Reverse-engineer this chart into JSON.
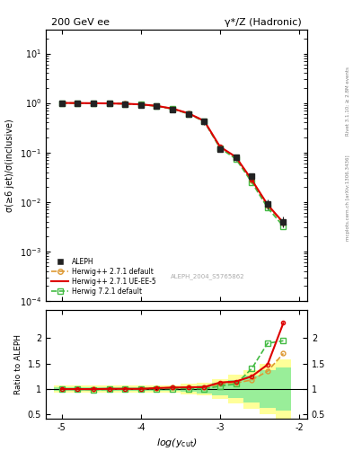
{
  "title_left": "200 GeV ee",
  "title_right": "γ*/Z (Hadronic)",
  "ylabel_main": "σ(≥6 jet)/σ(inclusive)",
  "ylabel_ratio": "Ratio to ALEPH",
  "xlabel": "log(y_cut)",
  "right_label_top": "Rivet 3.1.10; ≥ 2.8M events",
  "right_label_bottom": "mcplots.cern.ch [arXiv:1306.3436]",
  "watermark": "ALEPH_2004_S5765862",
  "x_data": [
    -5.0,
    -4.8,
    -4.6,
    -4.4,
    -4.2,
    -4.0,
    -3.8,
    -3.6,
    -3.4,
    -3.2,
    -3.0,
    -2.8,
    -2.6,
    -2.4,
    -2.2
  ],
  "aleph_y": [
    1.0,
    0.99,
    0.985,
    0.975,
    0.96,
    0.92,
    0.85,
    0.745,
    0.6,
    0.42,
    0.115,
    0.08,
    0.033,
    0.009,
    0.004
  ],
  "aleph_yerr": [
    0.015,
    0.015,
    0.015,
    0.015,
    0.015,
    0.02,
    0.03,
    0.04,
    0.05,
    0.06,
    0.012,
    0.012,
    0.005,
    0.002,
    0.001
  ],
  "hw271_default_y": [
    1.0,
    0.995,
    0.988,
    0.978,
    0.965,
    0.935,
    0.873,
    0.768,
    0.618,
    0.434,
    0.127,
    0.079,
    0.027,
    0.0082,
    0.0037
  ],
  "hw271_ueee5_y": [
    1.0,
    0.995,
    0.988,
    0.978,
    0.965,
    0.935,
    0.873,
    0.768,
    0.618,
    0.434,
    0.13,
    0.081,
    0.028,
    0.0088,
    0.0038
  ],
  "hw721_default_y": [
    1.0,
    0.995,
    0.987,
    0.976,
    0.962,
    0.928,
    0.863,
    0.755,
    0.603,
    0.422,
    0.122,
    0.074,
    0.025,
    0.0076,
    0.0032
  ],
  "ratio_hw271_default": [
    1.0,
    1.0,
    1.0,
    1.005,
    1.005,
    1.005,
    1.02,
    1.03,
    1.03,
    1.035,
    1.1,
    1.12,
    1.18,
    1.35,
    1.7
  ],
  "ratio_hw271_ueee5": [
    1.0,
    1.0,
    1.0,
    1.005,
    1.005,
    1.005,
    1.02,
    1.03,
    1.035,
    1.04,
    1.13,
    1.15,
    1.25,
    1.48,
    2.3
  ],
  "ratio_hw721_default": [
    1.0,
    1.0,
    0.99,
    0.995,
    1.0,
    1.005,
    1.01,
    1.01,
    1.01,
    1.005,
    1.06,
    1.1,
    1.4,
    1.9,
    1.95
  ],
  "band_x_edges": [
    -5.1,
    -4.9,
    -4.7,
    -4.5,
    -4.3,
    -4.1,
    -3.9,
    -3.7,
    -3.5,
    -3.3,
    -3.1,
    -2.9,
    -2.7,
    -2.5,
    -2.3,
    -2.1
  ],
  "band_yellow_lo": [
    0.93,
    0.93,
    0.93,
    0.93,
    0.93,
    0.93,
    0.93,
    0.93,
    0.9,
    0.87,
    0.8,
    0.72,
    0.62,
    0.5,
    0.42
  ],
  "band_yellow_hi": [
    1.07,
    1.07,
    1.07,
    1.07,
    1.07,
    1.07,
    1.07,
    1.07,
    1.1,
    1.13,
    1.2,
    1.28,
    1.38,
    1.5,
    1.58
  ],
  "band_green_lo": [
    0.96,
    0.96,
    0.96,
    0.96,
    0.96,
    0.96,
    0.96,
    0.96,
    0.94,
    0.92,
    0.87,
    0.82,
    0.74,
    0.63,
    0.57
  ],
  "band_green_hi": [
    1.04,
    1.04,
    1.04,
    1.04,
    1.04,
    1.04,
    1.04,
    1.04,
    1.06,
    1.08,
    1.13,
    1.18,
    1.26,
    1.37,
    1.43
  ],
  "color_aleph": "#222222",
  "color_hw271_default": "#dd9933",
  "color_hw271_ueee5": "#dd0000",
  "color_hw721_default": "#44bb44",
  "color_yellow": "#ffff99",
  "color_green": "#99ee99",
  "xlim": [
    -5.2,
    -1.9
  ],
  "ylim_main": [
    0.0001,
    30
  ],
  "ylim_ratio": [
    0.42,
    2.55
  ]
}
